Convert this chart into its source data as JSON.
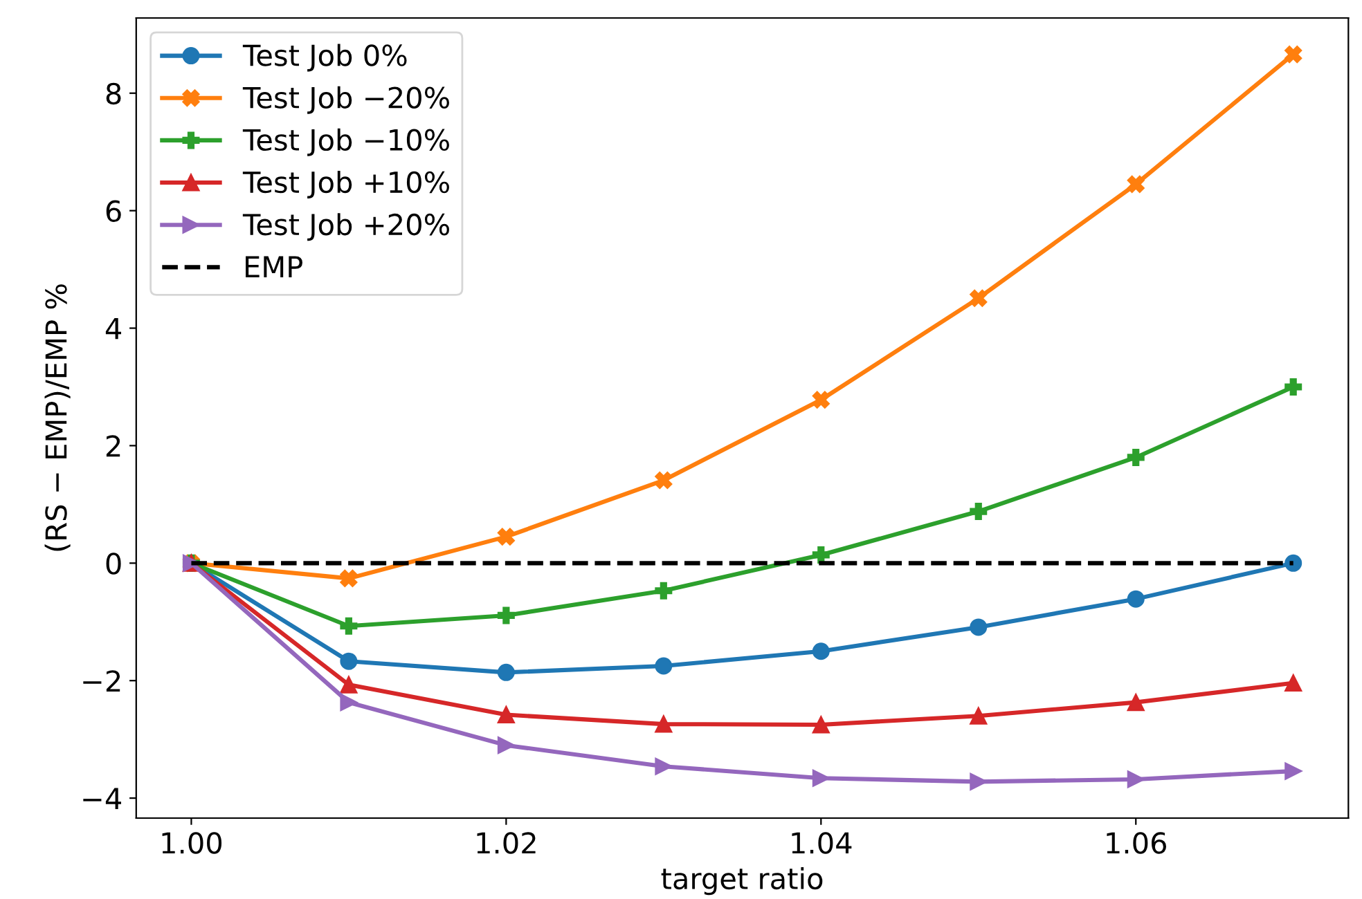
{
  "chart_data": {
    "type": "line",
    "xlabel": "target ratio",
    "ylabel": "(RS − EMP)/EMP %",
    "x": [
      1.0,
      1.01,
      1.02,
      1.03,
      1.04,
      1.05,
      1.06,
      1.07
    ],
    "series": [
      {
        "name": "Test Job 0%",
        "color": "#1f77b4",
        "marker": "circle",
        "values": [
          0,
          -1.67,
          -1.86,
          -1.75,
          -1.5,
          -1.09,
          -0.61,
          0
        ]
      },
      {
        "name": "Test Job −20%",
        "color": "#ff7f0e",
        "marker": "cross",
        "values": [
          0,
          -0.26,
          0.45,
          1.41,
          2.78,
          4.51,
          6.45,
          8.66
        ]
      },
      {
        "name": "Test Job −10%",
        "color": "#2ca02c",
        "marker": "plus",
        "values": [
          0,
          -1.07,
          -0.89,
          -0.47,
          0.14,
          0.88,
          1.8,
          3.0
        ]
      },
      {
        "name": "Test Job +10%",
        "color": "#d62728",
        "marker": "triangle",
        "values": [
          0,
          -2.07,
          -2.58,
          -2.74,
          -2.75,
          -2.6,
          -2.37,
          -2.04
        ]
      },
      {
        "name": "Test Job +20%",
        "color": "#9467bd",
        "marker": "triangle_right",
        "values": [
          0,
          -2.37,
          -3.1,
          -3.46,
          -3.66,
          -3.72,
          -3.68,
          -3.54
        ]
      },
      {
        "name": "EMP",
        "color": "#000000",
        "marker": "none",
        "line_style": "dashed",
        "values": [
          0,
          0,
          0,
          0,
          0,
          0,
          0,
          0
        ]
      }
    ],
    "xlim": [
      0.9965,
      1.0735
    ],
    "ylim": [
      -4.34,
      9.28
    ],
    "xticks": [
      {
        "value": 1.0,
        "label": "1.00"
      },
      {
        "value": 1.02,
        "label": "1.02"
      },
      {
        "value": 1.04,
        "label": "1.04"
      },
      {
        "value": 1.06,
        "label": "1.06"
      }
    ],
    "yticks": [
      -4,
      -2,
      0,
      2,
      4,
      6,
      8
    ],
    "grid": false,
    "legend": "top left"
  }
}
